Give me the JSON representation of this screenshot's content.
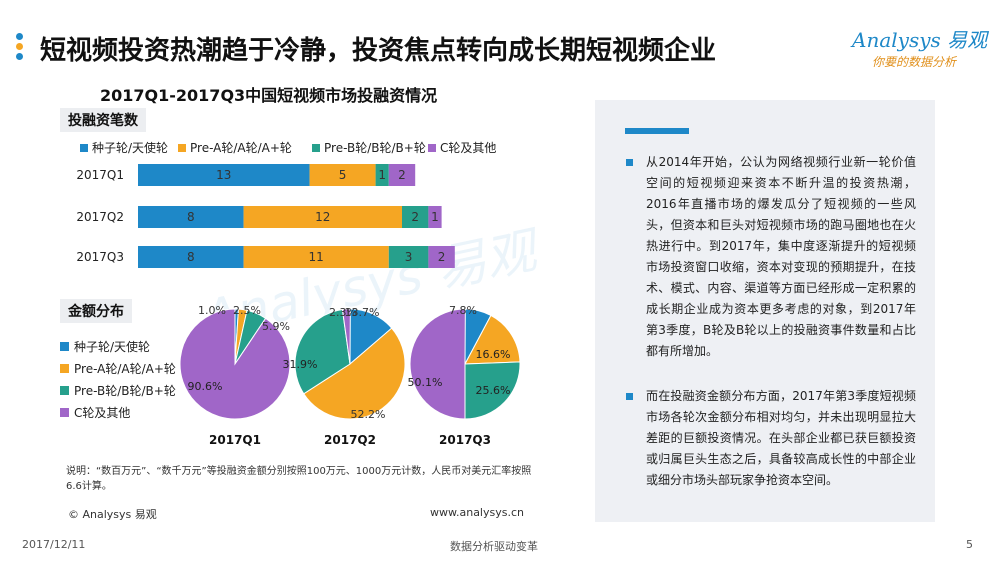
{
  "header": {
    "title": "短视频投资热潮趋于冷静，投资焦点转向成长期短视频企业",
    "logo_brand": "Analysys 易观",
    "logo_slogan": "你要的数据分析"
  },
  "colors": {
    "seed": "#1e88c8",
    "pre_a": "#f5a623",
    "pre_b": "#26a08c",
    "c_plus": "#a066c8",
    "accent": "#1e88c8"
  },
  "chart_title": "2017Q1-2017Q3中国短视频市场投融资情况",
  "sections": {
    "counts_label": "投融资笔数",
    "amounts_label": "金额分布"
  },
  "legend": [
    "种子轮/天使轮",
    "Pre-A轮/A轮/A+轮",
    "Pre-B轮/B轮/B+轮",
    "C轮及其他"
  ],
  "chart_data": [
    {
      "type": "bar",
      "orientation": "horizontal",
      "stacked": true,
      "title": "投融资笔数",
      "categories": [
        "2017Q1",
        "2017Q2",
        "2017Q3"
      ],
      "series": [
        {
          "name": "种子轮/天使轮",
          "values": [
            13,
            8,
            8
          ]
        },
        {
          "name": "Pre-A轮/A轮/A+轮",
          "values": [
            5,
            12,
            11
          ]
        },
        {
          "name": "Pre-B轮/B轮/B+轮",
          "values": [
            1,
            2,
            3
          ]
        },
        {
          "name": "C轮及其他",
          "values": [
            2,
            1,
            2
          ]
        }
      ],
      "legend_position": "top"
    },
    {
      "type": "pie",
      "title": "金额分布",
      "categories": [
        "2017Q1",
        "2017Q2",
        "2017Q3"
      ],
      "series": [
        {
          "name": "种子轮/天使轮",
          "values": [
            1.0,
            13.7,
            7.8
          ]
        },
        {
          "name": "Pre-A轮/A轮/A+轮",
          "values": [
            2.5,
            52.2,
            16.6
          ]
        },
        {
          "name": "Pre-B轮/B轮/B+轮",
          "values": [
            5.9,
            31.9,
            25.6
          ]
        },
        {
          "name": "C轮及其他",
          "values": [
            90.6,
            2.3,
            50.1
          ]
        }
      ],
      "unit": "%",
      "legend_position": "left"
    }
  ],
  "note": "说明：“数百万元”、“数千万元”等投融资金额分别按照100万元、1000万元计数，人民币对美元汇率按照6.6计算。",
  "source": {
    "copyright": "© Analysys 易观",
    "website": "www.analysys.cn"
  },
  "panel": {
    "paragraphs": [
      "从2014年开始，公认为网络视频行业新一轮价值空间的短视频迎来资本不断升温的投资热潮，2016年直播市场的爆发瓜分了短视频的一些风头，但资本和巨头对短视频市场的跑马圈地也在火热进行中。到2017年，集中度逐渐提升的短视频市场投资窗口收缩，资本对变现的预期提升，在技术、模式、内容、渠道等方面已经形成一定积累的成长期企业成为资本更多考虑的对象，到2017年第3季度，B轮及B轮以上的投融资事件数量和占比都有所增加。",
      "而在投融资金额分布方面，2017年第3季度短视频市场各轮次金额分布相对均匀，并未出现明显拉大差距的巨额投资情况。在头部企业都已获巨额投资或归属巨头生态之后，具备较高成长性的中部企业或细分市场头部玩家争抢资本空间。"
    ]
  },
  "footer": {
    "date": "2017/12/11",
    "slogan": "数据分析驱动变革",
    "page": "5"
  }
}
